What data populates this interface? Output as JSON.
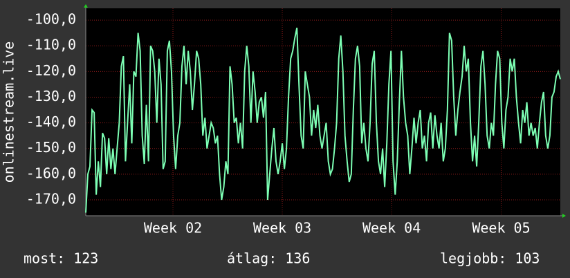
{
  "chart_data": {
    "type": "line",
    "y_axis_label": "onlinestream.live",
    "xlim": [
      0,
      227
    ],
    "xticks": [
      {
        "value": 41.7,
        "label": "Week 02"
      },
      {
        "value": 94,
        "label": "Week 03"
      },
      {
        "value": 146.3,
        "label": "Week 04"
      },
      {
        "value": 198.7,
        "label": "Week 05"
      }
    ],
    "ylim": [
      -176.2,
      -95.4
    ],
    "yticks": [
      {
        "value": -100,
        "label": "-100,0"
      },
      {
        "value": -110,
        "label": "-110,0"
      },
      {
        "value": -120,
        "label": "-120,0"
      },
      {
        "value": -130,
        "label": "-130,0"
      },
      {
        "value": -140,
        "label": "-140,0"
      },
      {
        "value": -150,
        "label": "-150,0"
      },
      {
        "value": -160,
        "label": "-160,0"
      },
      {
        "value": -170,
        "label": "-170,0"
      }
    ],
    "grid": true,
    "series": [
      {
        "color": "#7dffb4",
        "values": [
          -175,
          -160,
          -157,
          -135,
          -136,
          -168,
          -155,
          -165,
          -144,
          -146,
          -160,
          -146,
          -158,
          -150,
          -160,
          -150,
          -140,
          -118,
          -114,
          -155,
          -140,
          -125,
          -148,
          -120,
          -122,
          -105,
          -112,
          -145,
          -156,
          -133,
          -155,
          -110,
          -112,
          -120,
          -140,
          -115,
          -125,
          -158,
          -155,
          -112,
          -108,
          -120,
          -145,
          -158,
          -145,
          -140,
          -118,
          -110,
          -125,
          -112,
          -120,
          -135,
          -125,
          -112,
          -115,
          -125,
          -145,
          -138,
          -150,
          -145,
          -140,
          -142,
          -148,
          -145,
          -160,
          -170,
          -165,
          -155,
          -160,
          -118,
          -125,
          -140,
          -138,
          -148,
          -140,
          -150,
          -120,
          -110,
          -118,
          -140,
          -120,
          -128,
          -140,
          -132,
          -130,
          -138,
          -128,
          -170,
          -160,
          -150,
          -142,
          -155,
          -160,
          -155,
          -148,
          -158,
          -150,
          -130,
          -115,
          -112,
          -107,
          -103,
          -125,
          -145,
          -150,
          -120,
          -125,
          -130,
          -145,
          -135,
          -142,
          -133,
          -145,
          -150,
          -145,
          -140,
          -155,
          -160,
          -158,
          -150,
          -140,
          -115,
          -106,
          -120,
          -145,
          -155,
          -163,
          -160,
          -135,
          -115,
          -110,
          -118,
          -148,
          -140,
          -150,
          -155,
          -140,
          -117,
          -112,
          -140,
          -155,
          -160,
          -150,
          -165,
          -148,
          -125,
          -112,
          -155,
          -168,
          -155,
          -132,
          -112,
          -130,
          -140,
          -145,
          -160,
          -150,
          -138,
          -148,
          -140,
          -135,
          -150,
          -145,
          -155,
          -140,
          -136,
          -150,
          -137,
          -145,
          -150,
          -140,
          -155,
          -150,
          -135,
          -105,
          -108,
          -130,
          -145,
          -135,
          -128,
          -122,
          -110,
          -120,
          -115,
          -140,
          -155,
          -145,
          -157,
          -140,
          -118,
          -112,
          -125,
          -145,
          -150,
          -140,
          -145,
          -125,
          -112,
          -115,
          -140,
          -150,
          -135,
          -130,
          -115,
          -120,
          -115,
          -130,
          -140,
          -148,
          -135,
          -140,
          -132,
          -145,
          -140,
          -145,
          -142,
          -150,
          -140,
          -132,
          -128,
          -145,
          -150,
          -145,
          -130,
          -128,
          -122,
          -120,
          -123
        ]
      }
    ],
    "footer": [
      {
        "label": "most:",
        "value": 123
      },
      {
        "label": "átlag:",
        "value": 136
      },
      {
        "label": "legjobb:",
        "value": 103
      }
    ]
  }
}
